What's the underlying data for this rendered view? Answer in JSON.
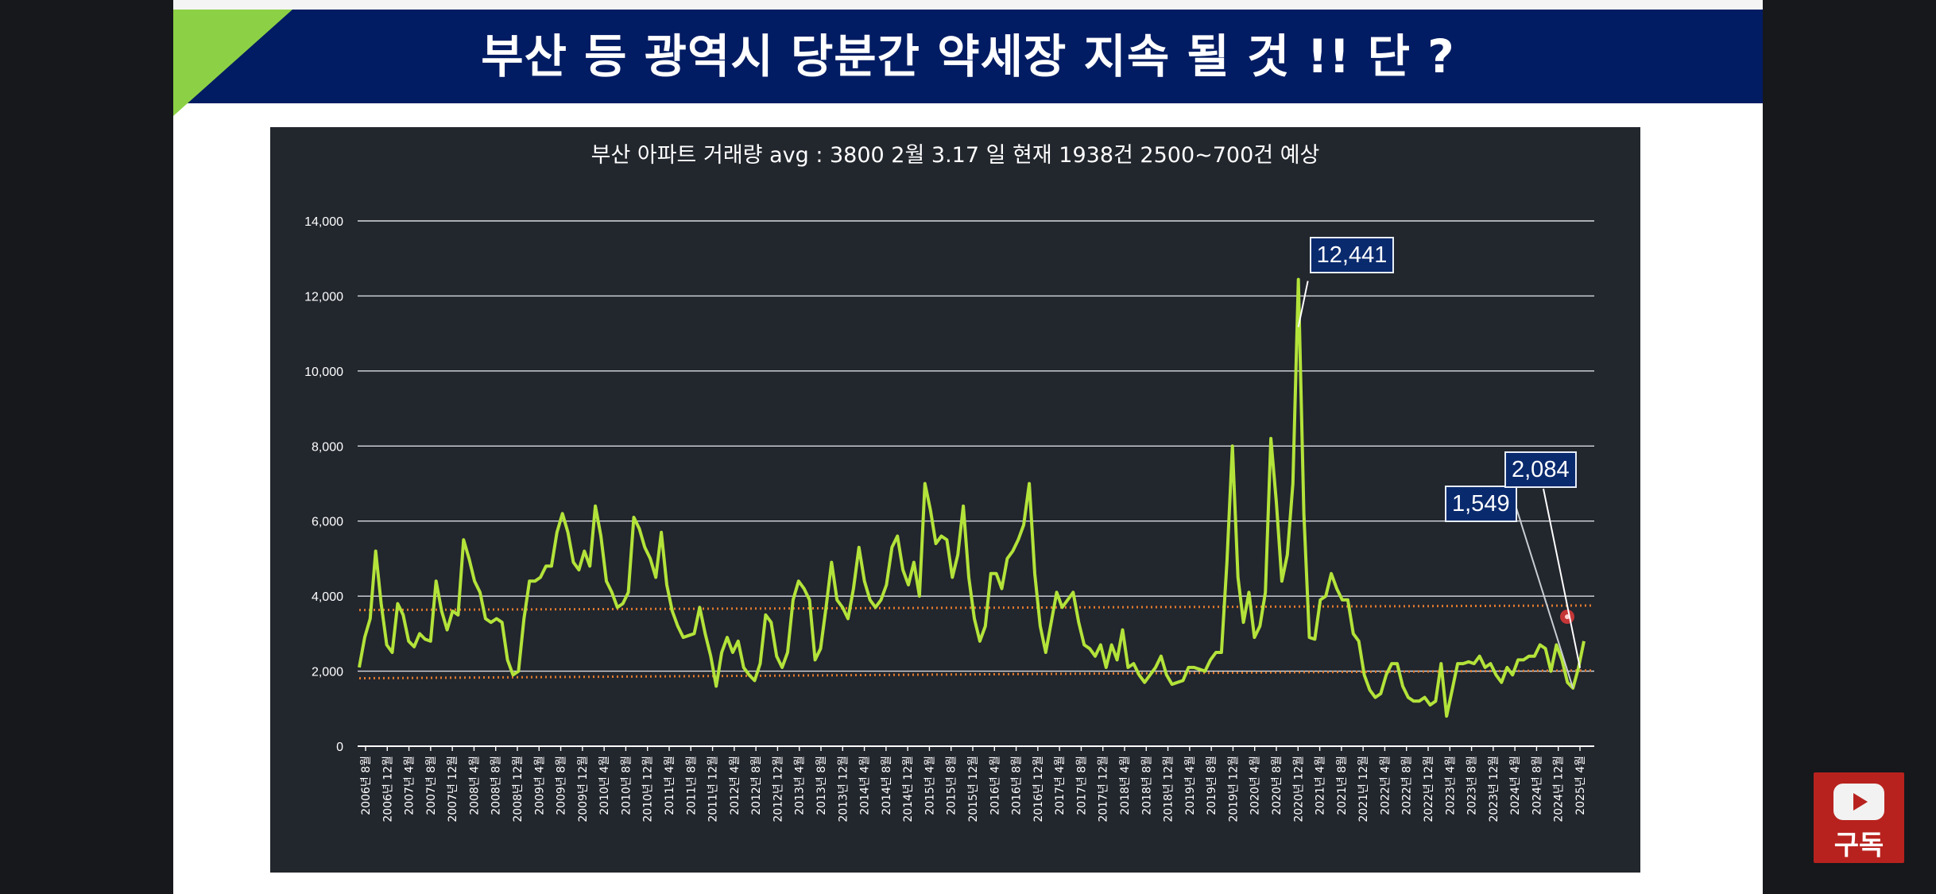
{
  "slide": {
    "title": "부산 등 광역시  당분간 약세장 지속 될 것 !! 단 ?",
    "subscribe_label": "구독"
  },
  "chart_data": {
    "type": "line",
    "title": "부산 아파트 거래량 avg : 3800  2월 3.17 일 현재 1938건  2500~700건 예상",
    "xlabel": "",
    "ylabel": "",
    "ylim": [
      0,
      14000
    ],
    "yticks": [
      "0",
      "2,000",
      "4,000",
      "6,000",
      "8,000",
      "10,000",
      "12,000",
      "14,000"
    ],
    "grid": true,
    "xtick_labels": [
      "2006년 8월",
      "2006년 12월",
      "2007년 4월",
      "2007년 8월",
      "2007년 12월",
      "2008년 4월",
      "2008년 8월",
      "2008년 12월",
      "2009년 4월",
      "2009년 8월",
      "2009년 12월",
      "2010년 4월",
      "2010년 8월",
      "2010년 12월",
      "2011년 4월",
      "2011년 8월",
      "2011년 12월",
      "2012년 4월",
      "2012년 8월",
      "2012년 12월",
      "2013년 4월",
      "2013년 8월",
      "2013년 12월",
      "2014년 4월",
      "2014년 8월",
      "2014년 12월",
      "2015년 4월",
      "2015년 8월",
      "2015년 12월",
      "2016년 4월",
      "2016년 8월",
      "2016년 12월",
      "2017년 4월",
      "2017년 8월",
      "2017년 12월",
      "2018년 4월",
      "2018년 8월",
      "2018년 12월",
      "2019년 4월",
      "2019년 8월",
      "2019년 12월",
      "2020년 4월",
      "2020년 8월",
      "2020년 12월",
      "2021년 4월",
      "2021년 8월",
      "2021년 12월",
      "2022년 4월",
      "2022년 8월",
      "2022년 12월",
      "2023년 4월",
      "2023년 8월",
      "2023년 12월",
      "2024년 4월",
      "2024년 8월",
      "2024년 12월",
      "2025년 4월"
    ],
    "series": [
      {
        "values": [
          2100,
          2900,
          3400,
          5200,
          3800,
          2700,
          2500,
          3800,
          3500,
          2800,
          2650,
          3000,
          2850,
          2800,
          4400,
          3600,
          3100,
          3600,
          3500,
          5500,
          5000,
          4400,
          4100,
          3400,
          3300,
          3400,
          3300,
          2300,
          1900,
          2000,
          3400,
          4400,
          4400,
          4500,
          4800,
          4800,
          5700,
          6200,
          5700,
          4900,
          4700,
          5200,
          4800,
          6400,
          5600,
          4400,
          4100,
          3700,
          3800,
          4100,
          6100,
          5800,
          5300,
          5000,
          4500,
          5700,
          4300,
          3600,
          3200,
          2900,
          2950,
          3000,
          3700,
          3000,
          2400,
          1600,
          2500,
          2900,
          2500,
          2800,
          2100,
          1900,
          1750,
          2200,
          3500,
          3300,
          2400,
          2100,
          2500,
          3900,
          4400,
          4200,
          3900,
          2300,
          2600,
          3700,
          4900,
          3900,
          3700,
          3400,
          4200,
          5300,
          4400,
          3900,
          3700,
          3900,
          4300,
          5300,
          5600,
          4700,
          4300,
          4900,
          4000,
          7000,
          6300,
          5400,
          5600,
          5500,
          4500,
          5100,
          6400,
          4500,
          3400,
          2800,
          3200,
          4600,
          4600,
          4200,
          5000,
          5200,
          5500,
          5900,
          7000,
          4600,
          3200,
          2500,
          3300,
          4100,
          3700,
          3900,
          4100,
          3300,
          2700,
          2600,
          2400,
          2700,
          2100,
          2700,
          2300,
          3100,
          2100,
          2200,
          1900,
          1700,
          1900,
          2100,
          2400,
          1900,
          1650,
          1700,
          1750,
          2100,
          2100,
          2050,
          2000,
          2300,
          2500,
          2500,
          4900,
          8000,
          4500,
          3300,
          4100,
          2900,
          3200,
          4100,
          8200,
          6500,
          4400,
          5100,
          7000,
          12441,
          6200,
          2900,
          2850,
          3900,
          4000,
          4600,
          4200,
          3900,
          3900,
          3000,
          2800,
          1900,
          1500,
          1300,
          1400,
          1900,
          2200,
          2200,
          1600,
          1300,
          1200,
          1200,
          1300,
          1100,
          1200,
          2200,
          800,
          1500,
          2200,
          2200,
          2250,
          2200,
          2400,
          2100,
          2200,
          1900,
          1700,
          2100,
          1900,
          2300,
          2300,
          2400,
          2400,
          2700,
          2600,
          2000,
          2700,
          2300,
          1700,
          1549,
          2084,
          2800
        ]
      }
    ],
    "reference_lines": [
      3750,
      1900
    ],
    "annotations": [
      {
        "label": "12,441",
        "value": 12441
      },
      {
        "label": "1,549",
        "value": 1549
      },
      {
        "label": "2,084",
        "value": 2084
      }
    ],
    "colors": {
      "line": "#b3e33a",
      "reference_line": "#e07a2e",
      "panel_background": "#22262d",
      "banner": "#021c63",
      "banner_accent": "#8cd145",
      "callout_background": "#0a2a6e"
    }
  }
}
